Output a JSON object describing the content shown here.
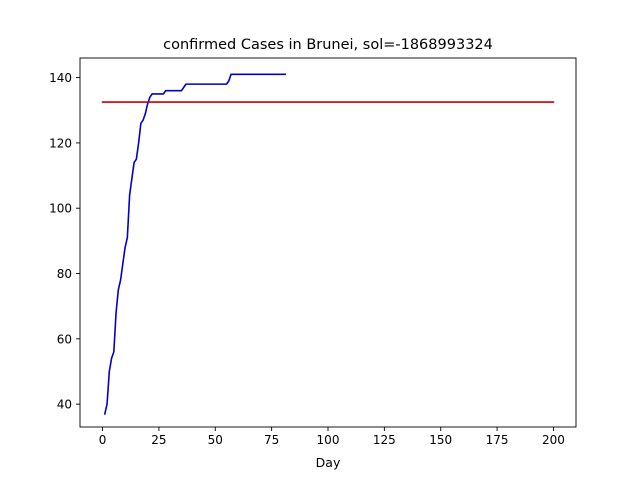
{
  "chart_data": {
    "type": "line",
    "title": "confirmed Cases in Brunei, sol=-1868993324",
    "xlabel": "Day",
    "ylabel": "",
    "xlim": [
      -10,
      210
    ],
    "ylim": [
      33,
      146
    ],
    "xticks": [
      0,
      25,
      50,
      75,
      100,
      125,
      150,
      175,
      200
    ],
    "yticks": [
      40,
      60,
      80,
      100,
      120,
      140
    ],
    "grid": false,
    "colors": {
      "actual": "#0000cc",
      "fit": "#cc0000"
    },
    "series": [
      {
        "color": "#0000cc",
        "x": [
          1,
          2,
          3,
          4,
          5,
          6,
          7,
          8,
          9,
          10,
          11,
          12,
          13,
          14,
          15,
          16,
          17,
          18,
          19,
          20,
          21,
          22,
          23,
          24,
          25,
          26,
          27,
          28,
          29,
          30,
          31,
          32,
          33,
          34,
          35,
          36,
          37,
          38,
          39,
          40,
          41,
          42,
          43,
          44,
          45,
          46,
          47,
          48,
          49,
          50,
          51,
          52,
          53,
          54,
          55,
          56,
          57,
          58,
          59,
          60,
          61,
          62,
          63,
          64,
          65,
          66,
          67,
          68,
          69,
          70,
          71,
          72,
          73,
          74,
          75,
          76,
          77,
          78,
          79,
          80,
          81
        ],
        "y": [
          37,
          40,
          50,
          54,
          56,
          68,
          75,
          78,
          83,
          88,
          91,
          104,
          109,
          114,
          115,
          120,
          126,
          127,
          129,
          132,
          134,
          135,
          135,
          135,
          135,
          135,
          135,
          136,
          136,
          136,
          136,
          136,
          136,
          136,
          136,
          137,
          138,
          138,
          138,
          138,
          138,
          138,
          138,
          138,
          138,
          138,
          138,
          138,
          138,
          138,
          138,
          138,
          138,
          138,
          138,
          139,
          141,
          141,
          141,
          141,
          141,
          141,
          141,
          141,
          141,
          141,
          141,
          141,
          141,
          141,
          141,
          141,
          141,
          141,
          141,
          141,
          141,
          141,
          141,
          141,
          141
        ]
      },
      {
        "color": "#cc0000",
        "x": [
          0,
          200
        ],
        "y": [
          132.5,
          132.5
        ]
      }
    ]
  }
}
